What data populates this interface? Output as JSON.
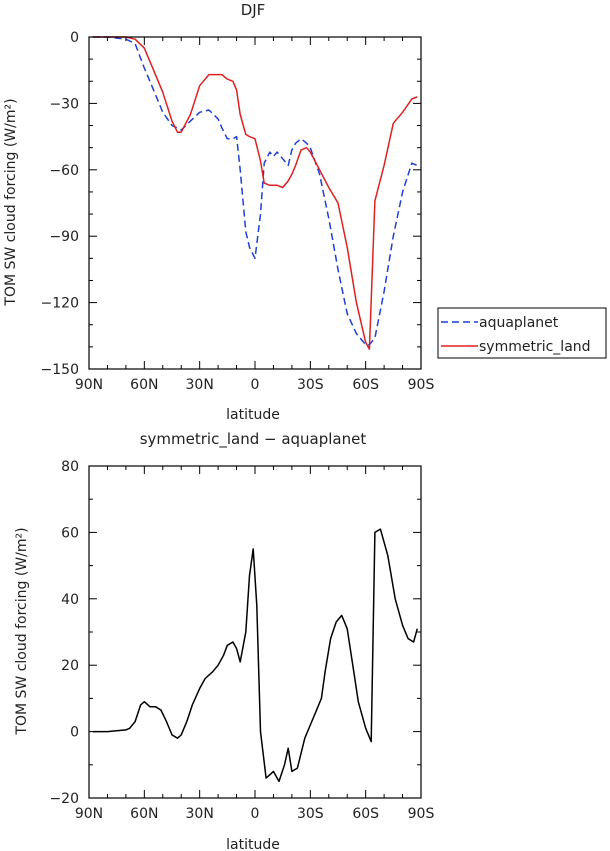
{
  "chart_data": [
    {
      "type": "line",
      "title": "DJF",
      "xlabel": "latitude",
      "ylabel": "TOM SW cloud forcing (W/m²)",
      "xlim": [
        90,
        -90
      ],
      "ylim": [
        -150,
        0
      ],
      "x_ticks": [
        {
          "value": 90,
          "label": "90N"
        },
        {
          "value": 60,
          "label": "60N"
        },
        {
          "value": 30,
          "label": "30N"
        },
        {
          "value": 0,
          "label": "0"
        },
        {
          "value": -30,
          "label": "30S"
        },
        {
          "value": -60,
          "label": "60S"
        },
        {
          "value": -90,
          "label": "90S"
        }
      ],
      "y_ticks": [
        0,
        -30,
        -60,
        -90,
        -120,
        -150
      ],
      "legend_position": "right",
      "series": [
        {
          "name": "aquaplanet",
          "color": "#1f3fd6",
          "style": "dashed",
          "x": [
            88,
            80,
            70,
            65,
            60,
            55,
            50,
            45,
            40,
            35,
            30,
            25,
            20,
            18,
            15,
            12,
            10,
            8,
            5,
            3,
            0,
            -3,
            -5,
            -8,
            -10,
            -12,
            -15,
            -18,
            -20,
            -22,
            -25,
            -28,
            -30,
            -35,
            -40,
            -45,
            -50,
            -55,
            -60,
            -62,
            -65,
            -70,
            -75,
            -80,
            -85,
            -88
          ],
          "y": [
            0,
            0,
            -1,
            -3,
            -14,
            -24,
            -34,
            -40,
            -42,
            -38,
            -34,
            -33,
            -37,
            -41,
            -46,
            -46,
            -45,
            -60,
            -88,
            -95,
            -100,
            -80,
            -57,
            -52,
            -54,
            -52,
            -55,
            -58,
            -51,
            -48,
            -46,
            -48,
            -50,
            -62,
            -82,
            -105,
            -125,
            -134,
            -139,
            -139,
            -136,
            -115,
            -90,
            -70,
            -57,
            -58
          ]
        },
        {
          "name": "symmetric_land",
          "color": "#e02020",
          "style": "solid",
          "x": [
            88,
            80,
            70,
            65,
            60,
            55,
            50,
            45,
            42,
            40,
            35,
            30,
            25,
            20,
            18,
            15,
            12,
            10,
            8,
            5,
            3,
            0,
            -3,
            -5,
            -8,
            -10,
            -12,
            -15,
            -18,
            -20,
            -22,
            -25,
            -28,
            -30,
            -35,
            -40,
            -45,
            -50,
            -55,
            -60,
            -62,
            -65,
            -70,
            -75,
            -80,
            -85,
            -88
          ],
          "y": [
            0,
            0,
            0,
            -1,
            -5,
            -15,
            -25,
            -38,
            -43,
            -43,
            -35,
            -22,
            -17,
            -17,
            -17,
            -19,
            -20,
            -24,
            -35,
            -44,
            -45,
            -46,
            -56,
            -66,
            -67,
            -67,
            -67,
            -68,
            -65,
            -62,
            -58,
            -51,
            -50,
            -52,
            -60,
            -68,
            -75,
            -95,
            -120,
            -138,
            -141,
            -74,
            -58,
            -39,
            -34,
            -28,
            -27
          ]
        }
      ]
    },
    {
      "type": "line",
      "title": "symmetric_land − aquaplanet",
      "xlabel": "latitude",
      "ylabel": "TOM SW cloud forcing (W/m²)",
      "xlim": [
        90,
        -90
      ],
      "ylim": [
        -20,
        80
      ],
      "x_ticks": [
        {
          "value": 90,
          "label": "90N"
        },
        {
          "value": 60,
          "label": "60N"
        },
        {
          "value": 30,
          "label": "30N"
        },
        {
          "value": 0,
          "label": "0"
        },
        {
          "value": -30,
          "label": "30S"
        },
        {
          "value": -60,
          "label": "60S"
        },
        {
          "value": -90,
          "label": "90S"
        }
      ],
      "y_ticks": [
        -20,
        0,
        20,
        40,
        60,
        80
      ],
      "series": [
        {
          "color": "#000000",
          "style": "solid",
          "x": [
            88,
            80,
            70,
            68,
            65,
            62,
            60,
            57,
            54,
            51,
            48,
            45,
            42,
            40,
            37,
            34,
            30,
            27,
            23,
            20,
            17,
            15,
            12,
            10,
            8,
            5,
            3,
            1,
            -1,
            -3,
            -6,
            -8,
            -10,
            -13,
            -16,
            -18,
            -20,
            -23,
            -27,
            -30,
            -33,
            -36,
            -38,
            -41,
            -44,
            -47,
            -50,
            -53,
            -56,
            -60,
            -63,
            -65,
            -68,
            -72,
            -76,
            -80,
            -83,
            -86,
            -88
          ],
          "y": [
            0,
            0,
            0.5,
            1,
            3,
            8,
            9,
            7.5,
            7.5,
            6.5,
            3,
            -1,
            -2,
            -1,
            3,
            8,
            13,
            16,
            18,
            20,
            23,
            26,
            27,
            25,
            21,
            30,
            47,
            55,
            38,
            0,
            -14,
            -13,
            -12,
            -15,
            -10,
            -5,
            -12,
            -11,
            -2,
            2,
            6,
            10,
            18,
            28,
            33,
            35,
            31,
            20,
            9,
            1,
            -3,
            60,
            61,
            53,
            40,
            32,
            28,
            27,
            31
          ]
        }
      ]
    }
  ]
}
